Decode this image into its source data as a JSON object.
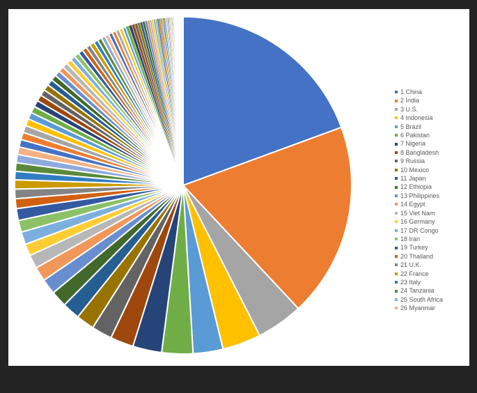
{
  "chart_data": {
    "type": "pie",
    "title": "",
    "legend_position": "right",
    "series": [
      {
        "rank": 1,
        "name": "China",
        "value": 1439,
        "color": "#4472c4"
      },
      {
        "rank": 2,
        "name": "India",
        "value": 1380,
        "color": "#ed7d31"
      },
      {
        "rank": 3,
        "name": "U.S.",
        "value": 331,
        "color": "#a5a5a5"
      },
      {
        "rank": 4,
        "name": "Indonesia",
        "value": 274,
        "color": "#ffc000"
      },
      {
        "rank": 5,
        "name": "Brazil",
        "value": 213,
        "color": "#5b9bd5"
      },
      {
        "rank": 6,
        "name": "Pakistan",
        "value": 221,
        "color": "#70ad47"
      },
      {
        "rank": 7,
        "name": "Nigeria",
        "value": 206,
        "color": "#264478"
      },
      {
        "rank": 8,
        "name": "Bangladesh",
        "value": 165,
        "color": "#9e480e"
      },
      {
        "rank": 9,
        "name": "Russia",
        "value": 146,
        "color": "#636363"
      },
      {
        "rank": 10,
        "name": "Mexico",
        "value": 129,
        "color": "#997300"
      },
      {
        "rank": 11,
        "name": "Japan",
        "value": 126,
        "color": "#255e91"
      },
      {
        "rank": 12,
        "name": "Ethiopia",
        "value": 115,
        "color": "#43682b"
      },
      {
        "rank": 13,
        "name": "Philippines",
        "value": 110,
        "color": "#698ed0"
      },
      {
        "rank": 14,
        "name": "Egypt",
        "value": 102,
        "color": "#f1975a"
      },
      {
        "rank": 15,
        "name": "Viet Nam",
        "value": 97,
        "color": "#b7b7b7"
      },
      {
        "rank": 16,
        "name": "Germany",
        "value": 84,
        "color": "#ffcd33"
      },
      {
        "rank": 17,
        "name": "DR Congo",
        "value": 90,
        "color": "#7cafdd"
      },
      {
        "rank": 18,
        "name": "Iran",
        "value": 84,
        "color": "#8cc168"
      },
      {
        "rank": 19,
        "name": "Turkey",
        "value": 84,
        "color": "#335aa1"
      },
      {
        "rank": 20,
        "name": "Thailand",
        "value": 70,
        "color": "#d26012"
      },
      {
        "rank": 21,
        "name": "U.K.",
        "value": 68,
        "color": "#848484"
      },
      {
        "rank": 22,
        "name": "France",
        "value": 65,
        "color": "#cc9a00"
      },
      {
        "rank": 23,
        "name": "Italy",
        "value": 60,
        "color": "#327dc2"
      },
      {
        "rank": 24,
        "name": "Tanzania",
        "value": 60,
        "color": "#5a8a39"
      },
      {
        "rank": 25,
        "name": "South Africa",
        "value": 59,
        "color": "#8faadc"
      },
      {
        "rank": 26,
        "name": "Myanmar",
        "value": 54,
        "color": "#f4b183"
      }
    ],
    "other_slices": [
      53,
      52,
      51,
      50,
      49,
      48,
      46,
      45,
      44,
      44,
      43,
      41,
      40,
      39,
      38,
      37,
      36,
      35,
      34,
      33,
      32,
      32,
      31,
      30,
      29,
      28,
      28,
      27,
      26,
      25,
      24,
      23,
      22,
      21,
      20,
      19,
      18,
      17,
      17,
      16,
      15,
      14,
      13,
      12,
      11,
      11,
      10,
      9,
      9,
      8,
      8,
      7,
      7,
      6,
      6,
      5,
      5,
      5,
      4,
      4,
      4,
      3,
      3,
      3,
      3,
      2,
      2,
      2,
      2,
      2,
      2,
      2,
      1,
      1,
      1,
      1,
      1,
      1,
      1,
      1,
      1,
      1,
      1,
      1,
      1,
      1,
      1,
      1,
      1,
      1,
      1,
      1,
      1,
      1,
      1,
      1,
      1,
      1,
      1,
      1,
      0.9,
      0.9,
      0.8,
      0.8,
      0.7,
      0.7,
      0.6,
      0.6,
      0.5,
      0.5,
      0.5,
      0.4,
      0.4,
      0.4,
      0.3,
      0.3,
      0.3,
      0.2,
      0.2,
      0.2,
      0.2,
      0.2,
      0.1,
      0.1,
      0.1,
      0.1,
      0.1,
      0.1,
      0.1,
      0.1
    ],
    "palette": [
      "#4472c4",
      "#ed7d31",
      "#a5a5a5",
      "#ffc000",
      "#5b9bd5",
      "#70ad47",
      "#264478",
      "#9e480e",
      "#636363",
      "#997300",
      "#255e91",
      "#43682b",
      "#698ed0",
      "#f1975a",
      "#b7b7b7",
      "#ffcd33",
      "#7cafdd",
      "#8cc168",
      "#335aa1",
      "#d26012",
      "#848484",
      "#cc9a00",
      "#327dc2",
      "#5a8a39",
      "#8faadc",
      "#f4b183"
    ]
  }
}
